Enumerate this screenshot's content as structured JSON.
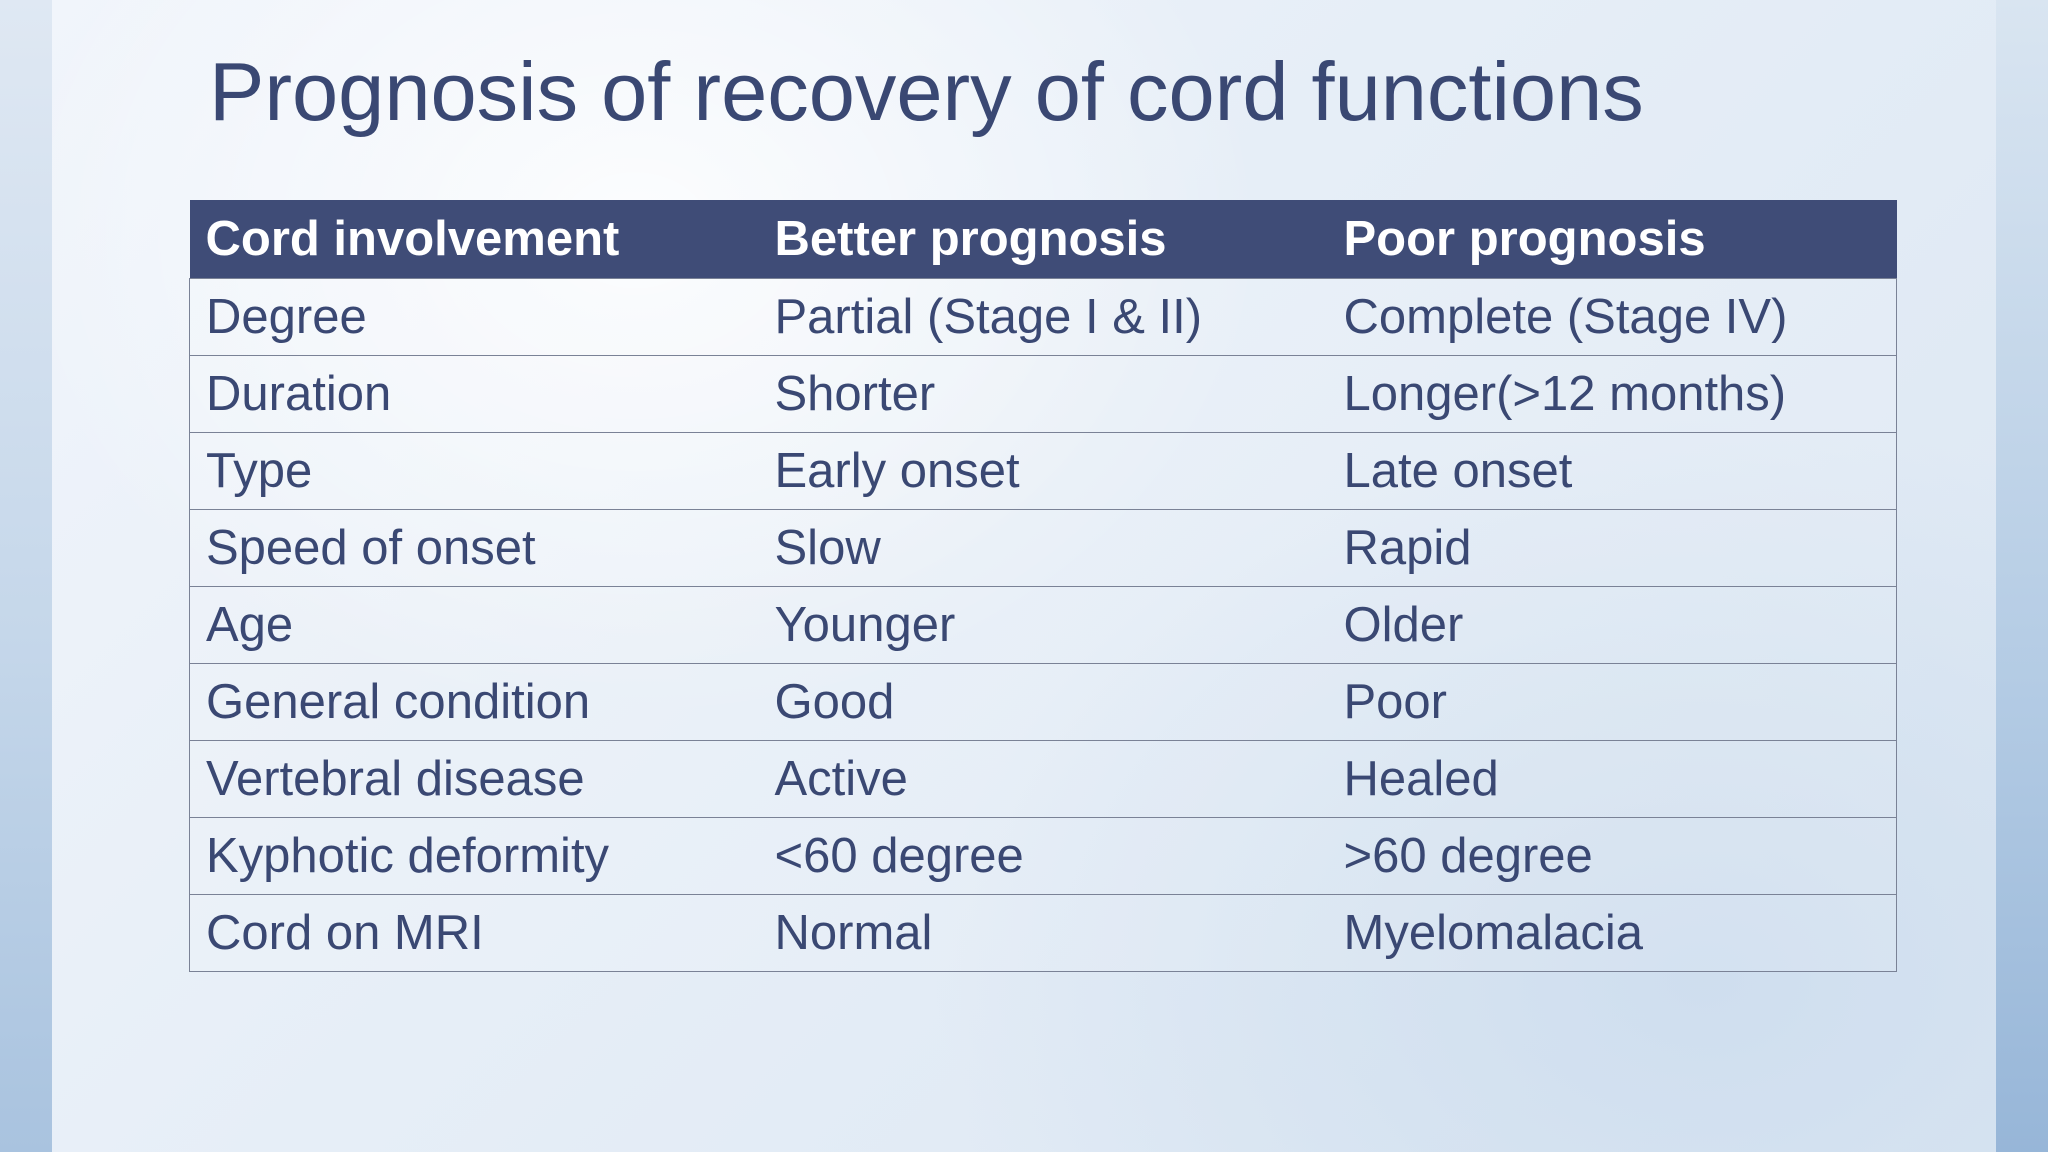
{
  "slide": {
    "title": "Prognosis of recovery of cord functions"
  },
  "table": {
    "headers": [
      "Cord involvement",
      "Better prognosis",
      "Poor prognosis"
    ],
    "rows": [
      [
        "Degree",
        "Partial (Stage I & II)",
        "Complete (Stage IV)"
      ],
      [
        "Duration",
        "Shorter",
        "Longer(>12 months)"
      ],
      [
        "Type",
        "Early onset",
        "Late onset"
      ],
      [
        "Speed of onset",
        "Slow",
        "Rapid"
      ],
      [
        "Age",
        "Younger",
        "Older"
      ],
      [
        "General condition",
        "Good",
        "Poor"
      ],
      [
        "Vertebral disease",
        "Active",
        "Healed"
      ],
      [
        "Kyphotic deformity",
        "<60 degree",
        ">60 degree"
      ],
      [
        "Cord on MRI",
        "Normal",
        "Myelomalacia"
      ]
    ]
  },
  "colors": {
    "header_bg": "#3f4c77",
    "text": "#3a4873",
    "header_text": "#ffffff"
  }
}
